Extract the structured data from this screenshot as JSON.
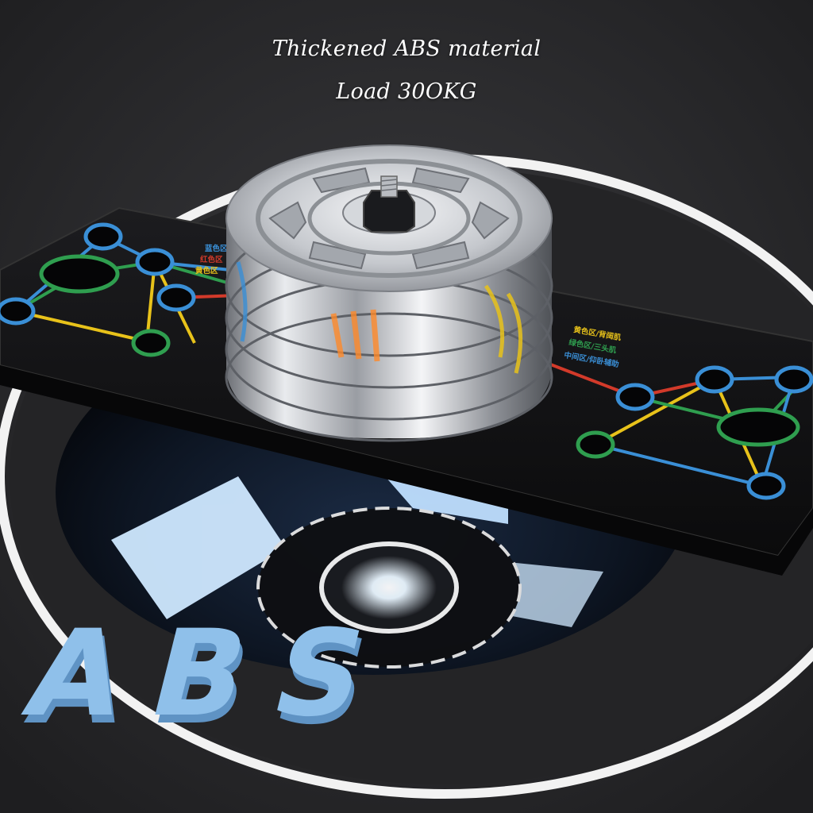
{
  "captions": {
    "line1": "Thickened ABS material",
    "line2": "Load 30OKG"
  },
  "board_labels": {
    "left": [
      "蓝色区",
      "红色区",
      "黄色区"
    ],
    "right": [
      "黄色区/背阔肌",
      "绿色区/三头肌",
      "中间区/仰卧辅助"
    ]
  },
  "abs_text": "ABS",
  "colors": {
    "background": "#2c2c2e",
    "ring": "#f2f2f2",
    "board": "#141416",
    "blue": "#3a8fd6",
    "green": "#2f9e4f",
    "yellow": "#e8c21a",
    "red": "#d23a2a",
    "glow": "#cfe8ff",
    "abs_letters": "#7fb2e0",
    "metal": "#c9ccd1"
  }
}
